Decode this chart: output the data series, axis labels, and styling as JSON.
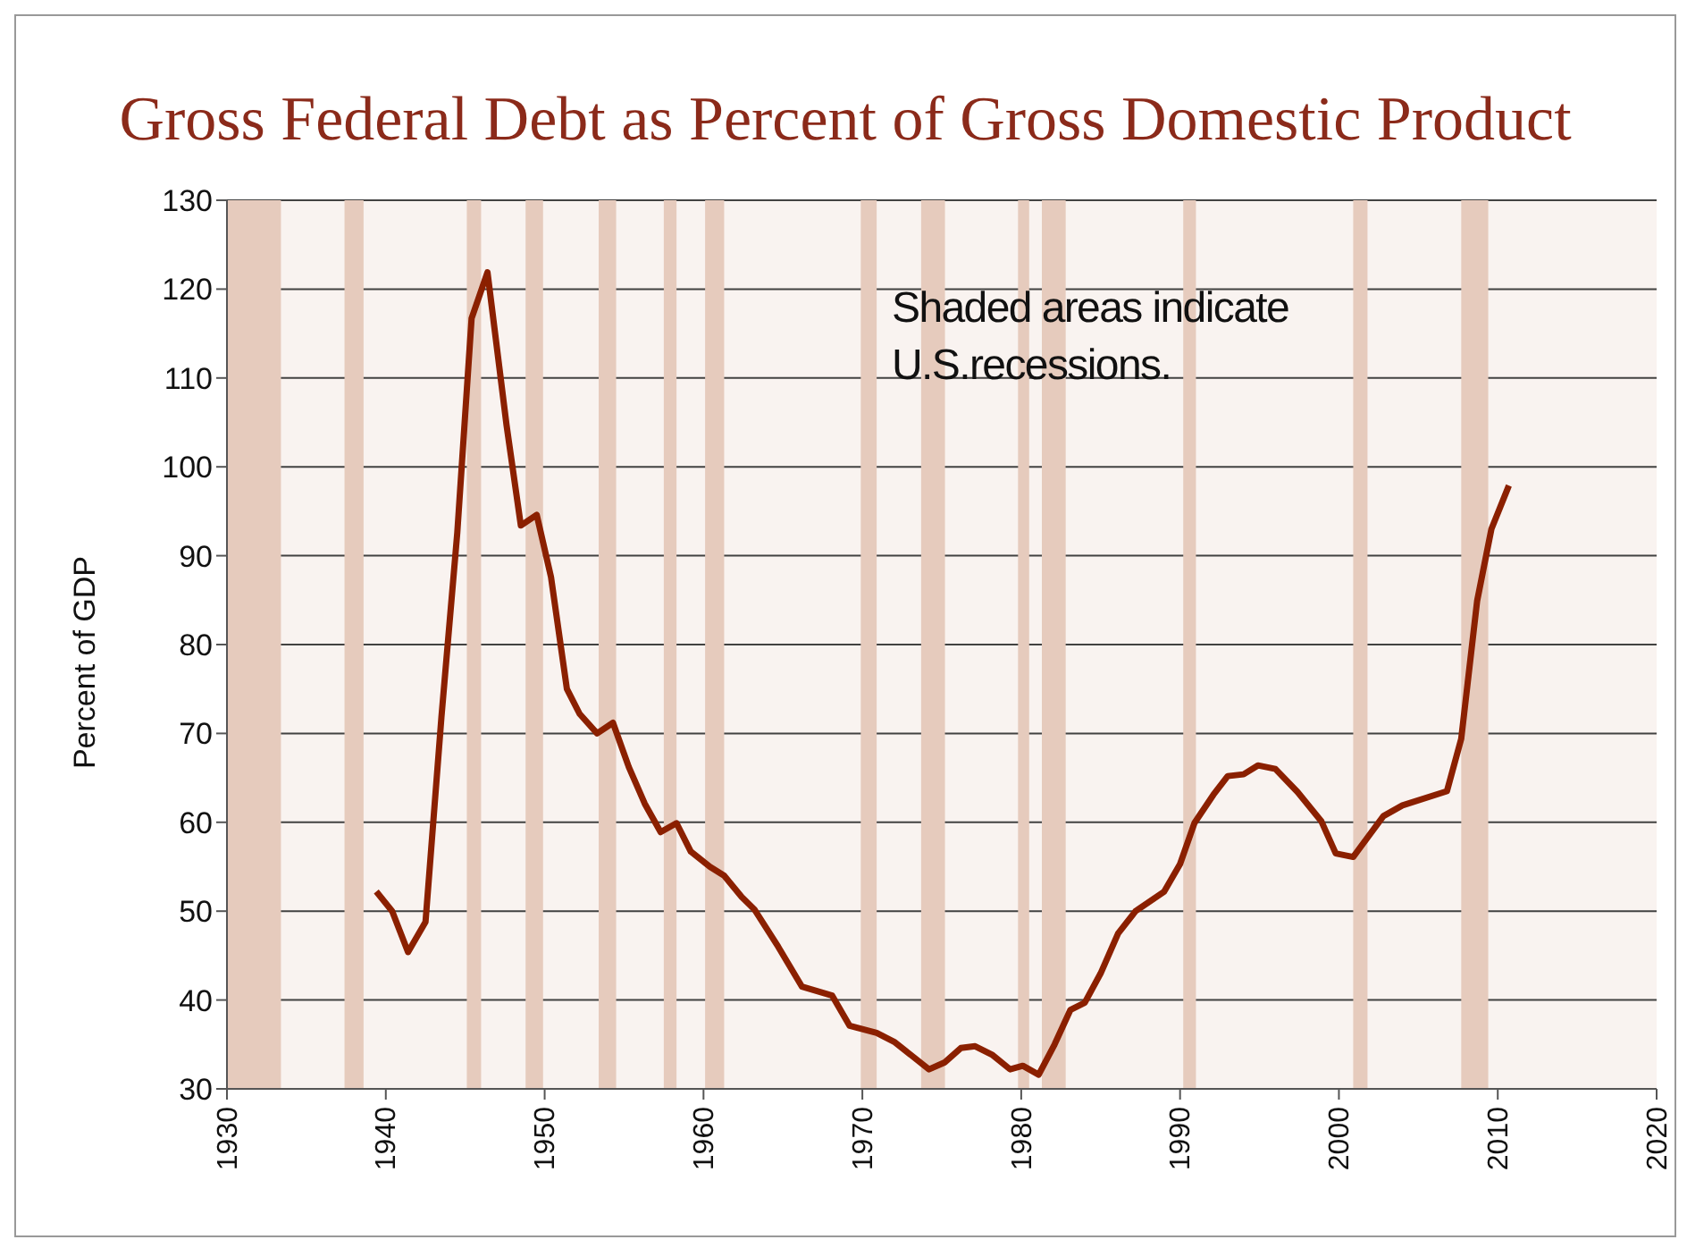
{
  "chart_data": {
    "type": "line",
    "title": "Gross Federal Debt as Percent of Gross Domestic Product",
    "ylabel": "Percent of GDP",
    "annotations": [
      "Shaded areas indicate U.S.recessions."
    ],
    "x": [
      1939.4,
      1940.4,
      1941.4,
      1942.5,
      1943.5,
      1944.5,
      1945.4,
      1946.4,
      1947.6,
      1948.5,
      1949.5,
      1950.4,
      1951.4,
      1952.2,
      1953.3,
      1954.3,
      1955.3,
      1956.3,
      1957.3,
      1958.3,
      1959.2,
      1960.4,
      1961.3,
      1962.4,
      1963.2,
      1964.7,
      1966.2,
      1968.1,
      1969.2,
      1970.9,
      1972.0,
      1974.2,
      1975.2,
      1976.2,
      1977.1,
      1978.2,
      1979.3,
      1980.1,
      1981.1,
      1982.1,
      1983.1,
      1984.0,
      1985.0,
      1986.1,
      1987.2,
      1989.0,
      1990.0,
      1990.9,
      1992.1,
      1993.0,
      1994.0,
      1994.9,
      1996.0,
      1997.4,
      1998.9,
      1999.8,
      2000.9,
      2002.8,
      2004.0,
      2006.8,
      2007.7,
      2008.7,
      2009.6,
      2010.7
    ],
    "series": [
      {
        "color": "#8b2000",
        "values": [
          52.2,
          50,
          45.4,
          48.8,
          71.8,
          92.6,
          116.7,
          121.9,
          104.7,
          93.4,
          94.6,
          87.6,
          75,
          72.2,
          70,
          71.2,
          66.2,
          62.1,
          58.9,
          59.9,
          56.7,
          55,
          54,
          51.6,
          50.2,
          46,
          41.5,
          40.5,
          37.1,
          36.3,
          35.3,
          32.2,
          33,
          34.6,
          34.8,
          33.8,
          32.2,
          32.6,
          31.6,
          35,
          38.9,
          39.7,
          43,
          47.5,
          50,
          52.2,
          55.3,
          59.9,
          63.1,
          65.2,
          65.4,
          66.4,
          66,
          63.4,
          60.1,
          56.5,
          56.1,
          60.7,
          61.9,
          63.5,
          69.4,
          84.9,
          93,
          97.9
        ]
      }
    ],
    "bands": [
      {
        "axis": "x",
        "from": 1930,
        "to": 1933.4,
        "color": "#e6cbbd"
      },
      {
        "axis": "x",
        "from": 1937.4,
        "to": 1938.6,
        "color": "#e6cbbd"
      },
      {
        "axis": "x",
        "from": 1945.1,
        "to": 1946.0,
        "color": "#e6cbbd"
      },
      {
        "axis": "x",
        "from": 1948.8,
        "to": 1949.9,
        "color": "#e6cbbd"
      },
      {
        "axis": "x",
        "from": 1953.4,
        "to": 1954.5,
        "color": "#e6cbbd"
      },
      {
        "axis": "x",
        "from": 1957.5,
        "to": 1958.3,
        "color": "#e6cbbd"
      },
      {
        "axis": "x",
        "from": 1960.1,
        "to": 1961.3,
        "color": "#e6cbbd"
      },
      {
        "axis": "x",
        "from": 1969.9,
        "to": 1970.9,
        "color": "#e6cbbd"
      },
      {
        "axis": "x",
        "from": 1973.7,
        "to": 1975.2,
        "color": "#e6cbbd"
      },
      {
        "axis": "x",
        "from": 1979.8,
        "to": 1980.5,
        "color": "#e6cbbd"
      },
      {
        "axis": "x",
        "from": 1981.3,
        "to": 1982.8,
        "color": "#e6cbbd"
      },
      {
        "axis": "x",
        "from": 1990.2,
        "to": 1991.0,
        "color": "#e6cbbd"
      },
      {
        "axis": "x",
        "from": 2000.9,
        "to": 2001.8,
        "color": "#e6cbbd"
      },
      {
        "axis": "x",
        "from": 2007.7,
        "to": 2009.4,
        "color": "#e6cbbd"
      }
    ],
    "xlim": [
      1930,
      2020
    ],
    "xticks": [
      1930,
      1940,
      1950,
      1960,
      1970,
      1980,
      1990,
      2000,
      2010,
      2020
    ],
    "ylim": [
      30,
      130
    ],
    "yticks": [
      30,
      40,
      50,
      60,
      70,
      80,
      90,
      100,
      110,
      120,
      130
    ],
    "grid": "y",
    "legend": false,
    "marker": "none",
    "line_style": "solid"
  }
}
